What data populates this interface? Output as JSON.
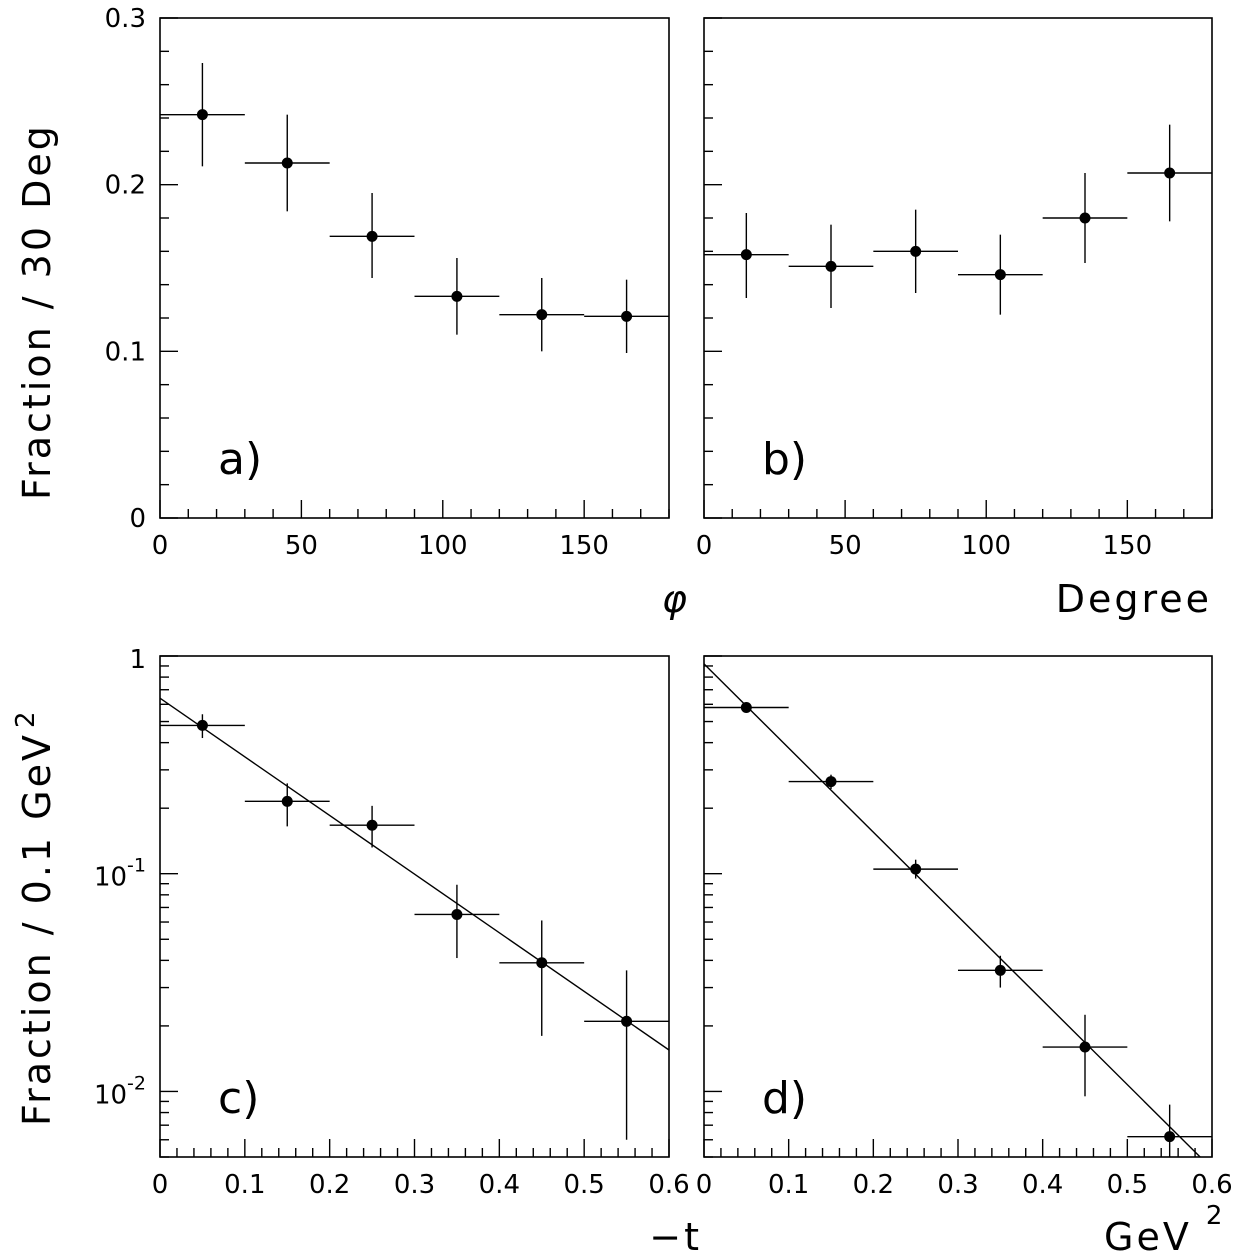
{
  "figure": {
    "ylabel_top": "Fraction / 30 Deg",
    "ylabel_bottom": "Fraction / 0.1 GeV",
    "ylabel_bottom_sup": "2",
    "xlabel_top_left": "φ",
    "xlabel_top_right": "Degree",
    "xlabel_bottom_left": "−t",
    "xlabel_bottom_right": "GeV",
    "xlabel_bottom_right_sup": "2"
  },
  "chart_data": [
    {
      "id": "a",
      "type": "scatter",
      "panel_label": "a)",
      "xscale": "linear",
      "yscale": "linear",
      "xlim": [
        0,
        180
      ],
      "ylim": [
        0,
        0.3
      ],
      "xticks": [
        0,
        50,
        100,
        150
      ],
      "xtick_labels": [
        "0",
        "50",
        "100",
        "150"
      ],
      "yticks": [
        0,
        0.1,
        0.2,
        0.3
      ],
      "ytick_labels": [
        "0",
        "0.1",
        "0.2",
        "0.3"
      ],
      "x": [
        15,
        45,
        75,
        105,
        135,
        165
      ],
      "xerr": [
        15,
        15,
        15,
        15,
        15,
        15
      ],
      "y": [
        0.242,
        0.213,
        0.169,
        0.133,
        0.122,
        0.121
      ],
      "yerr_low": [
        0.031,
        0.029,
        0.025,
        0.023,
        0.022,
        0.022
      ],
      "yerr_high": [
        0.031,
        0.029,
        0.026,
        0.023,
        0.022,
        0.022
      ],
      "fit_line": null
    },
    {
      "id": "b",
      "type": "scatter",
      "panel_label": "b)",
      "xscale": "linear",
      "yscale": "linear",
      "xlim": [
        0,
        180
      ],
      "ylim": [
        0,
        0.3
      ],
      "xticks": [
        0,
        50,
        100,
        150
      ],
      "xtick_labels": [
        "0",
        "50",
        "100",
        "150"
      ],
      "yticks": [
        0,
        0.1,
        0.2,
        0.3
      ],
      "ytick_labels": [],
      "x": [
        15,
        45,
        75,
        105,
        135,
        165
      ],
      "xerr": [
        15,
        15,
        15,
        15,
        15,
        15
      ],
      "y": [
        0.158,
        0.151,
        0.16,
        0.146,
        0.18,
        0.207
      ],
      "yerr_low": [
        0.026,
        0.025,
        0.025,
        0.024,
        0.027,
        0.029
      ],
      "yerr_high": [
        0.025,
        0.025,
        0.025,
        0.024,
        0.027,
        0.029
      ],
      "fit_line": null
    },
    {
      "id": "c",
      "type": "scatter",
      "panel_label": "c)",
      "xscale": "linear",
      "yscale": "log",
      "xlim": [
        0,
        0.6
      ],
      "ylim": [
        0.005,
        1
      ],
      "xticks": [
        0,
        0.1,
        0.2,
        0.3,
        0.4,
        0.5,
        0.6
      ],
      "xtick_labels": [
        "0",
        "0.1",
        "0.2",
        "0.3",
        "0.4",
        "0.5",
        "0.6"
      ],
      "ydecades": [
        -2,
        -1,
        0
      ],
      "ytick_labels": [
        {
          "base": "10",
          "exp": "-2"
        },
        {
          "base": "10",
          "exp": "-1"
        },
        {
          "base": "1",
          "exp": ""
        }
      ],
      "x": [
        0.05,
        0.15,
        0.25,
        0.35,
        0.45,
        0.55
      ],
      "xerr": [
        0.05,
        0.05,
        0.05,
        0.05,
        0.05,
        0.05
      ],
      "y": [
        0.48,
        0.215,
        0.167,
        0.065,
        0.039,
        0.021
      ],
      "yerr_low": [
        0.06,
        0.05,
        0.035,
        0.024,
        0.021,
        0.015
      ],
      "yerr_high": [
        0.06,
        0.045,
        0.038,
        0.024,
        0.022,
        0.015
      ],
      "fit_line": {
        "x": [
          0,
          0.6
        ],
        "y": [
          0.64,
          0.0155
        ]
      }
    },
    {
      "id": "d",
      "type": "scatter",
      "panel_label": "d)",
      "xscale": "linear",
      "yscale": "log",
      "xlim": [
        0,
        0.6
      ],
      "ylim": [
        0.005,
        1
      ],
      "xticks": [
        0,
        0.1,
        0.2,
        0.3,
        0.4,
        0.5,
        0.6
      ],
      "xtick_labels": [
        "0",
        "0.1",
        "0.2",
        "0.3",
        "0.4",
        "0.5",
        "0.6"
      ],
      "ydecades": [
        -2,
        -1,
        0
      ],
      "ytick_labels": [],
      "x": [
        0.05,
        0.15,
        0.25,
        0.35,
        0.45,
        0.55
      ],
      "xerr": [
        0.05,
        0.05,
        0.05,
        0.05,
        0.05,
        0.05
      ],
      "y": [
        0.58,
        0.265,
        0.105,
        0.036,
        0.016,
        0.0062
      ],
      "yerr_low": [
        0.03,
        0.02,
        0.01,
        0.006,
        0.0065,
        0.0015
      ],
      "yerr_high": [
        0.03,
        0.02,
        0.011,
        0.006,
        0.0065,
        0.0025
      ],
      "fit_line": {
        "x": [
          0,
          0.586
        ],
        "y": [
          0.92,
          0.005
        ]
      }
    }
  ]
}
